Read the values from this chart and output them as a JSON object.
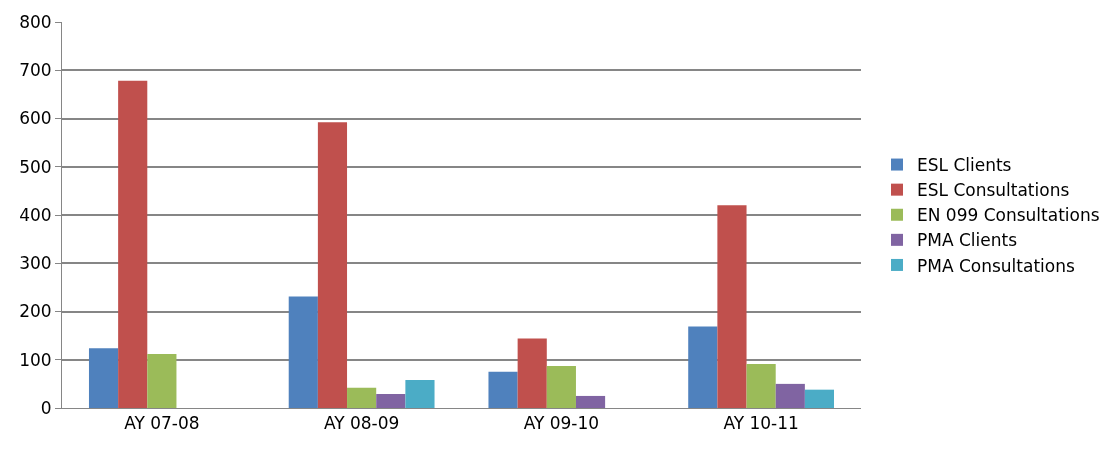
{
  "chart_data": {
    "type": "bar",
    "categories": [
      "AY 07-08",
      "AY 08-09",
      "AY 09-10",
      "AY 10-11"
    ],
    "series": [
      {
        "name": "ESL Clients",
        "color": "#4f81bd",
        "values": [
          124,
          231,
          75,
          169
        ]
      },
      {
        "name": "ESL Consultations",
        "color": "#c0504d",
        "values": [
          678,
          592,
          144,
          420
        ]
      },
      {
        "name": "EN 099 Consultations",
        "color": "#9bbb59",
        "values": [
          112,
          42,
          87,
          91
        ]
      },
      {
        "name": "PMA Clients",
        "color": "#8064a2",
        "values": [
          0,
          29,
          25,
          50
        ]
      },
      {
        "name": "PMA Consultations",
        "color": "#4bacc6",
        "values": [
          0,
          58,
          0,
          38
        ]
      }
    ],
    "ylim": [
      0,
      800
    ],
    "yticks": [
      0,
      100,
      200,
      300,
      400,
      500,
      600,
      700,
      800
    ],
    "grid": "y",
    "legend": "right"
  }
}
